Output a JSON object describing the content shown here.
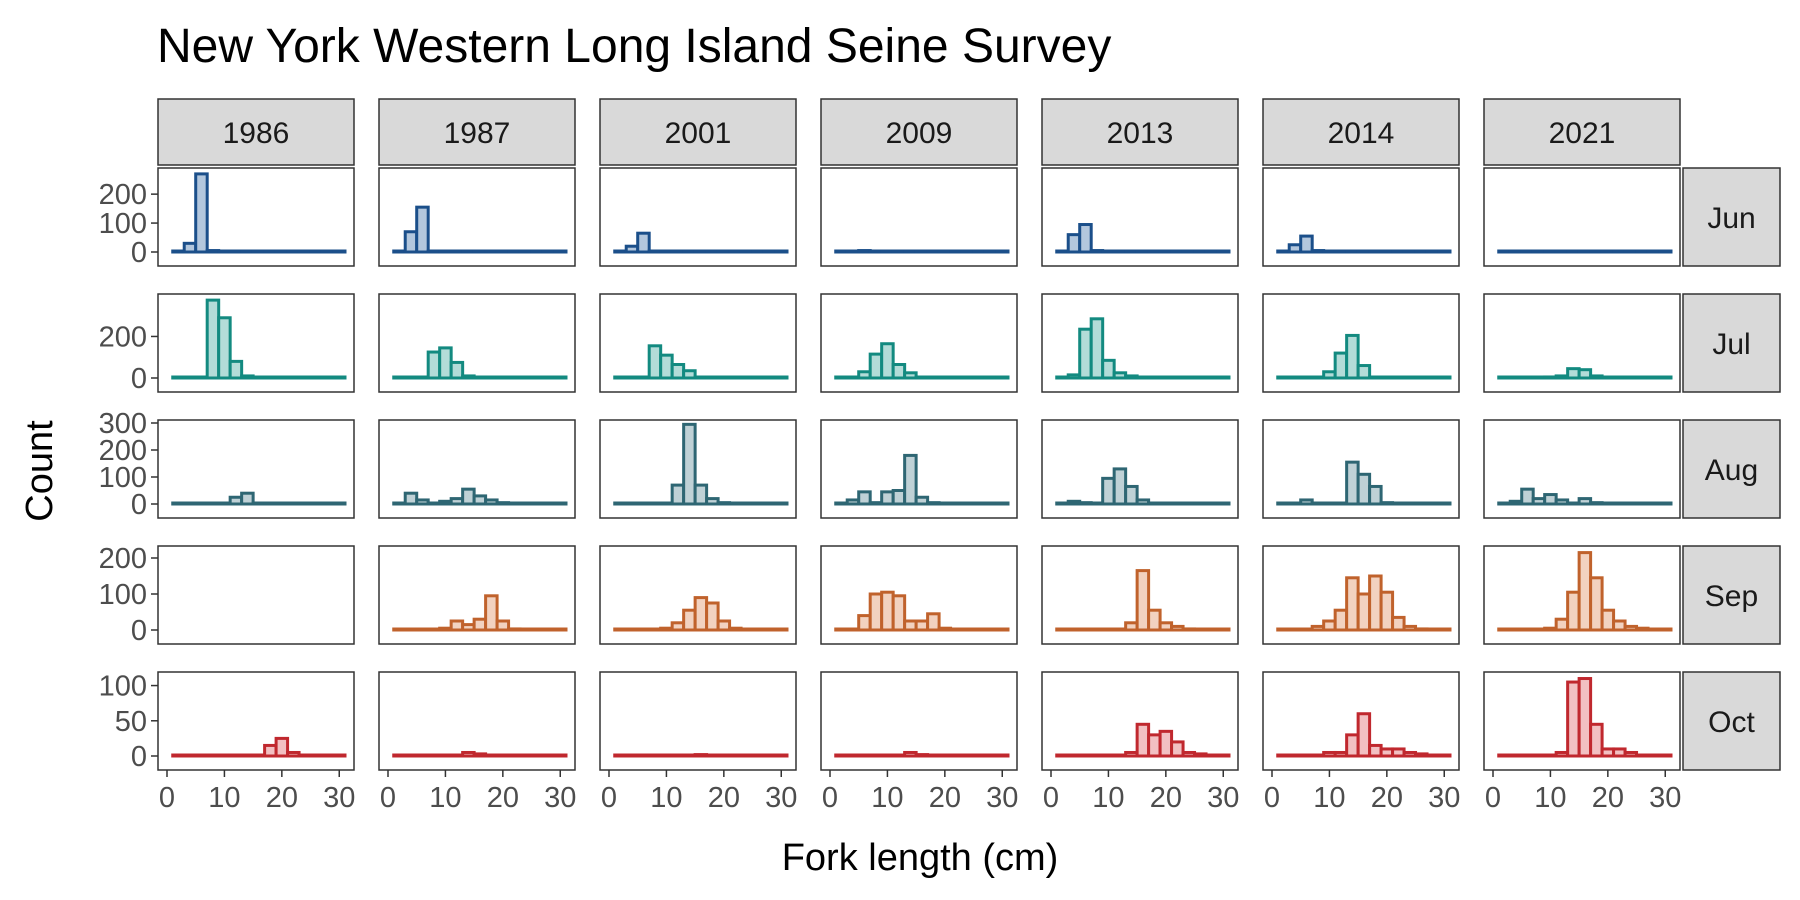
{
  "chart_data": {
    "type": "bar",
    "subtype": "faceted-histogram",
    "title": "New York Western Long Island Seine Survey",
    "xlabel": "Fork length (cm)",
    "ylabel": "Count",
    "xlim": [
      0,
      31
    ],
    "xticks": [
      0,
      10,
      20,
      30
    ],
    "bin_width": 2,
    "bin_starts": [
      1,
      3,
      5,
      7,
      9,
      11,
      13,
      15,
      17,
      19,
      21,
      23,
      25,
      27,
      29
    ],
    "years": [
      "1986",
      "1987",
      "2001",
      "2009",
      "2013",
      "2014",
      "2021"
    ],
    "months": [
      {
        "label": "Jun",
        "color": "#1b4f8a",
        "fill": "#b3c7dd",
        "ylim": [
          0,
          280
        ],
        "yticks": [
          0,
          100,
          200
        ]
      },
      {
        "label": "Jul",
        "color": "#138a80",
        "fill": "#b3dcd8",
        "ylim": [
          0,
          390
        ],
        "yticks": [
          0,
          200
        ]
      },
      {
        "label": "Aug",
        "color": "#2e6673",
        "fill": "#bfd1d6",
        "ylim": [
          0,
          300
        ],
        "yticks": [
          0,
          100,
          200,
          300
        ]
      },
      {
        "label": "Sep",
        "color": "#c0622c",
        "fill": "#f2d2c0",
        "ylim": [
          0,
          225
        ],
        "yticks": [
          0,
          100,
          200
        ]
      },
      {
        "label": "Oct",
        "color": "#c0282e",
        "fill": "#f2c0c2",
        "ylim": [
          0,
          115
        ],
        "yticks": [
          0,
          50,
          100
        ]
      }
    ],
    "panels": {
      "Jun": [
        [
          0,
          30,
          270,
          5,
          0,
          0,
          0,
          0,
          0,
          0,
          0,
          0,
          0,
          0,
          0
        ],
        [
          0,
          70,
          155,
          0,
          0,
          0,
          0,
          0,
          0,
          0,
          0,
          0,
          0,
          0,
          0
        ],
        [
          3,
          20,
          65,
          0,
          0,
          0,
          0,
          0,
          0,
          0,
          0,
          0,
          0,
          0,
          0
        ],
        [
          0,
          3,
          5,
          0,
          0,
          0,
          0,
          0,
          0,
          0,
          0,
          0,
          0,
          0,
          0
        ],
        [
          0,
          60,
          95,
          5,
          0,
          0,
          0,
          0,
          0,
          0,
          0,
          0,
          0,
          0,
          0
        ],
        [
          3,
          25,
          55,
          5,
          0,
          0,
          0,
          0,
          0,
          0,
          0,
          0,
          0,
          0,
          0
        ],
        [
          0,
          0,
          0,
          0,
          0,
          0,
          0,
          0,
          0,
          0,
          0,
          0,
          0,
          0,
          0
        ]
      ],
      "Jul": [
        [
          0,
          0,
          0,
          375,
          290,
          80,
          10,
          0,
          0,
          0,
          0,
          0,
          0,
          0,
          0
        ],
        [
          0,
          0,
          0,
          125,
          145,
          75,
          10,
          0,
          0,
          0,
          0,
          0,
          0,
          0,
          0
        ],
        [
          0,
          0,
          0,
          155,
          110,
          65,
          35,
          0,
          0,
          0,
          0,
          0,
          0,
          0,
          0
        ],
        [
          0,
          0,
          30,
          115,
          165,
          65,
          25,
          3,
          0,
          0,
          0,
          0,
          0,
          0,
          0
        ],
        [
          0,
          15,
          235,
          285,
          85,
          25,
          10,
          3,
          0,
          0,
          0,
          0,
          0,
          0,
          0
        ],
        [
          0,
          0,
          0,
          0,
          30,
          120,
          205,
          60,
          0,
          0,
          0,
          0,
          0,
          0,
          0
        ],
        [
          0,
          0,
          0,
          0,
          5,
          10,
          45,
          40,
          10,
          0,
          0,
          0,
          0,
          0,
          0
        ]
      ],
      "Aug": [
        [
          0,
          0,
          0,
          0,
          0,
          25,
          40,
          0,
          0,
          0,
          0,
          0,
          0,
          0,
          0
        ],
        [
          0,
          40,
          15,
          0,
          10,
          20,
          55,
          30,
          15,
          5,
          0,
          0,
          0,
          0,
          0
        ],
        [
          0,
          0,
          0,
          0,
          0,
          70,
          295,
          70,
          20,
          5,
          0,
          0,
          0,
          0,
          0
        ],
        [
          0,
          15,
          45,
          5,
          45,
          50,
          180,
          25,
          5,
          0,
          0,
          0,
          0,
          0,
          0
        ],
        [
          0,
          10,
          5,
          0,
          95,
          130,
          65,
          15,
          0,
          0,
          0,
          0,
          0,
          0,
          0
        ],
        [
          0,
          0,
          15,
          0,
          0,
          0,
          155,
          110,
          65,
          5,
          0,
          0,
          0,
          0,
          0
        ],
        [
          0,
          10,
          55,
          20,
          35,
          15,
          0,
          20,
          5,
          0,
          0,
          0,
          0,
          0,
          0
        ]
      ],
      "Sep": [
        [
          0,
          0,
          0,
          0,
          0,
          0,
          0,
          0,
          0,
          0,
          0,
          0,
          0,
          0,
          0
        ],
        [
          0,
          0,
          0,
          0,
          5,
          25,
          15,
          30,
          95,
          25,
          3,
          0,
          0,
          0,
          0
        ],
        [
          0,
          0,
          0,
          0,
          5,
          20,
          55,
          90,
          75,
          25,
          5,
          0,
          0,
          0,
          0
        ],
        [
          0,
          0,
          40,
          100,
          105,
          95,
          25,
          25,
          45,
          5,
          0,
          0,
          0,
          0,
          0
        ],
        [
          0,
          0,
          0,
          0,
          0,
          0,
          20,
          165,
          55,
          20,
          10,
          3,
          0,
          0,
          0
        ],
        [
          0,
          0,
          0,
          10,
          25,
          55,
          145,
          100,
          150,
          105,
          35,
          10,
          3,
          0,
          0
        ],
        [
          0,
          0,
          0,
          0,
          5,
          30,
          105,
          215,
          145,
          55,
          25,
          10,
          5,
          0,
          0
        ]
      ],
      "Oct": [
        [
          0,
          0,
          0,
          0,
          0,
          0,
          0,
          0,
          15,
          25,
          5,
          0,
          0,
          0,
          0
        ],
        [
          0,
          0,
          0,
          0,
          0,
          0,
          5,
          3,
          0,
          0,
          0,
          0,
          0,
          0,
          0
        ],
        [
          0,
          0,
          0,
          0,
          0,
          0,
          0,
          2,
          0,
          0,
          0,
          0,
          0,
          0,
          0
        ],
        [
          0,
          0,
          0,
          0,
          0,
          0,
          5,
          2,
          0,
          0,
          0,
          0,
          0,
          0,
          0
        ],
        [
          0,
          0,
          0,
          0,
          0,
          0,
          5,
          45,
          30,
          35,
          20,
          5,
          3,
          0,
          0
        ],
        [
          0,
          0,
          0,
          0,
          5,
          5,
          30,
          60,
          15,
          10,
          10,
          5,
          3,
          0,
          0
        ],
        [
          0,
          0,
          0,
          0,
          0,
          5,
          105,
          110,
          45,
          10,
          10,
          5,
          0,
          0,
          0
        ]
      ]
    }
  }
}
